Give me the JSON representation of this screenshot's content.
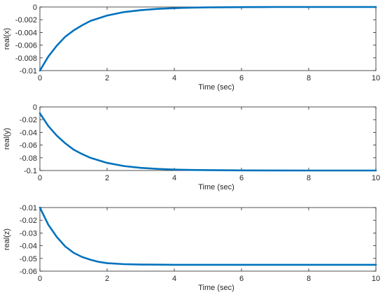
{
  "chart_data": [
    {
      "type": "line",
      "xlabel": "Time (sec)",
      "ylabel": "real(x)",
      "xlim": [
        0,
        10
      ],
      "ylim": [
        -0.01,
        0
      ],
      "x_ticks": [
        "0",
        "2",
        "4",
        "6",
        "8",
        "10"
      ],
      "y_ticks": [
        "0",
        "-0.002",
        "-0.004",
        "-0.006",
        "-0.008",
        "-0.01"
      ],
      "grid": false,
      "series": [
        {
          "x": [
            0,
            0.25,
            0.5,
            0.75,
            1,
            1.25,
            1.5,
            2,
            2.5,
            3,
            3.5,
            4,
            4.5,
            5,
            6,
            7,
            8,
            9,
            10
          ],
          "values": [
            -0.01,
            -0.0078,
            -0.0061,
            -0.0047,
            -0.0037,
            -0.0029,
            -0.0022,
            -0.00135,
            -0.0008,
            -0.0005,
            -0.0003,
            -0.00018,
            -0.0001,
            -6e-05,
            -2e-05,
            0,
            0,
            0,
            0
          ]
        }
      ]
    },
    {
      "type": "line",
      "xlabel": "Time (sec)",
      "ylabel": "real(y)",
      "xlim": [
        0,
        10
      ],
      "ylim": [
        -0.1,
        0
      ],
      "x_ticks": [
        "0",
        "2",
        "4",
        "6",
        "8",
        "10"
      ],
      "y_ticks": [
        "0",
        "-0.02",
        "-0.04",
        "-0.06",
        "-0.08",
        "-0.1"
      ],
      "grid": false,
      "series": [
        {
          "x": [
            0,
            0.25,
            0.5,
            0.75,
            1,
            1.25,
            1.5,
            2,
            2.5,
            3,
            3.5,
            4,
            4.5,
            5,
            6,
            7,
            8,
            9,
            10
          ],
          "values": [
            -0.01,
            -0.03,
            -0.045,
            -0.057,
            -0.067,
            -0.074,
            -0.08,
            -0.088,
            -0.093,
            -0.0958,
            -0.0975,
            -0.0985,
            -0.0991,
            -0.0994,
            -0.0998,
            -0.0999,
            -0.1,
            -0.1,
            -0.1
          ]
        }
      ]
    },
    {
      "type": "line",
      "xlabel": "Time (sec)",
      "ylabel": "real(z)",
      "xlim": [
        0,
        10
      ],
      "ylim": [
        -0.06,
        -0.01
      ],
      "x_ticks": [
        "0",
        "2",
        "4",
        "6",
        "8",
        "10"
      ],
      "y_ticks": [
        "-0.01",
        "-0.02",
        "-0.03",
        "-0.04",
        "-0.05",
        "-0.06"
      ],
      "grid": false,
      "series": [
        {
          "x": [
            0,
            0.25,
            0.5,
            0.75,
            1,
            1.25,
            1.5,
            1.75,
            2,
            2.5,
            3,
            3.5,
            4,
            5,
            6,
            7,
            8,
            9,
            10
          ],
          "values": [
            -0.01,
            -0.0235,
            -0.033,
            -0.0405,
            -0.0455,
            -0.0488,
            -0.051,
            -0.0527,
            -0.0537,
            -0.0545,
            -0.0548,
            -0.0549,
            -0.055,
            -0.055,
            -0.055,
            -0.055,
            -0.055,
            -0.055,
            -0.055
          ]
        }
      ]
    }
  ],
  "colors": {
    "line": "#0072BD",
    "axes": "#262626",
    "background": "#ffffff"
  }
}
